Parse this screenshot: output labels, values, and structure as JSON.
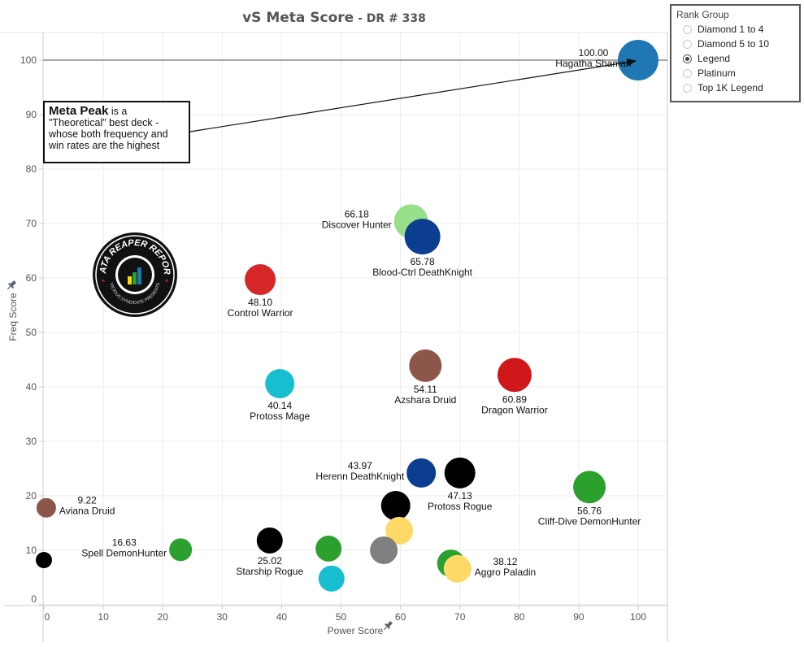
{
  "title": {
    "main": "vS Meta Score",
    "sep": " - ",
    "sub": "DR # 338"
  },
  "legend": {
    "title": "Rank Group",
    "options": [
      {
        "label": "Diamond 1 to 4",
        "selected": false
      },
      {
        "label": "Diamond 5 to 10",
        "selected": false
      },
      {
        "label": "Legend",
        "selected": true
      },
      {
        "label": "Platinum",
        "selected": false
      },
      {
        "label": "Top 1K Legend",
        "selected": false
      }
    ]
  },
  "annotation": {
    "bold": "Meta Peak",
    "rest": " is a \"Theoretical\" best deck - whose both frequency and win rates are the highest"
  },
  "logo": {
    "text_top": "DATA REAPER REPORT",
    "text_bottom": "VICIOUS SYNDICATE PRESENTS"
  },
  "chart_data": {
    "type": "scatter",
    "title": "vS Meta Score - DR # 338",
    "xlabel": "Power Score",
    "ylabel": "Freq Score",
    "xlim": [
      -1,
      105
    ],
    "ylim": [
      -1,
      105
    ],
    "xticks": [
      0,
      10,
      20,
      30,
      40,
      50,
      60,
      70,
      80,
      90,
      100
    ],
    "yticks": [
      0,
      10,
      20,
      30,
      40,
      50,
      60,
      70,
      80,
      90,
      100
    ],
    "grid": true,
    "reference_line_y": 100,
    "points": [
      {
        "name": "Hagatha Shaman",
        "score": "100.00",
        "x": 100,
        "y": 100,
        "size": 25,
        "color": "#1f77b4",
        "label_pos": "left-top"
      },
      {
        "name": "Discover Hunter",
        "score": "66.18",
        "x": 61.8,
        "y": 70.4,
        "size": 21,
        "color": "#98df8a",
        "label_pos": "left"
      },
      {
        "name": "Blood-Ctrl DeathKnight",
        "score": "65.78",
        "x": 63.7,
        "y": 67.6,
        "size": 22,
        "color": "#0b3d91",
        "label_pos": "below"
      },
      {
        "name": "Control Warrior",
        "score": "48.10",
        "x": 36.4,
        "y": 59.7,
        "size": 19,
        "color": "#d62728",
        "label_pos": "below"
      },
      {
        "name": "Azshara Druid",
        "score": "54.11",
        "x": 64.2,
        "y": 43.9,
        "size": 20,
        "color": "#8c564b",
        "label_pos": "below"
      },
      {
        "name": "Dragon Warrior",
        "score": "60.89",
        "x": 79.2,
        "y": 42.2,
        "size": 21,
        "color": "#d0181b",
        "label_pos": "below"
      },
      {
        "name": "Protoss Mage",
        "score": "40.14",
        "x": 39.7,
        "y": 40.6,
        "size": 18,
        "color": "#17becf",
        "label_pos": "below"
      },
      {
        "name": "Herenn DeathKnight",
        "score": "43.97",
        "x": 63.5,
        "y": 24.2,
        "size": 18,
        "color": "#0b3d91",
        "label_pos": "left"
      },
      {
        "name": "Protoss Rogue",
        "score": "47.13",
        "x": 70.0,
        "y": 24.2,
        "size": 19,
        "color": "#000000",
        "label_pos": "below"
      },
      {
        "name": "Cliff-Dive DemonHunter",
        "score": "56.76",
        "x": 91.8,
        "y": 21.6,
        "size": 20,
        "color": "#2ca02c",
        "label_pos": "below"
      },
      {
        "name": "Aviana Druid",
        "score": "9.22",
        "x": 0.4,
        "y": 17.8,
        "size": 12,
        "color": "#8c564b",
        "label_pos": "right"
      },
      {
        "name": "",
        "score": "",
        "x": 59.2,
        "y": 18.2,
        "size": 18,
        "color": "#000000",
        "label_pos": "none"
      },
      {
        "name": "",
        "score": "",
        "x": 59.8,
        "y": 13.6,
        "size": 17,
        "color": "#ffd966",
        "label_pos": "none"
      },
      {
        "name": "",
        "score": "",
        "x": 57.2,
        "y": 10.0,
        "size": 17,
        "color": "#7f7f7f",
        "label_pos": "none"
      },
      {
        "name": "",
        "score": "",
        "x": 47.9,
        "y": 10.3,
        "size": 16,
        "color": "#2ca02c",
        "label_pos": "none"
      },
      {
        "name": "Spell DemonHunter",
        "score": "16.63",
        "x": 23.0,
        "y": 10.1,
        "size": 14,
        "color": "#2ca02c",
        "label_pos": "left"
      },
      {
        "name": "Starship Rogue",
        "score": "25.02",
        "x": 38.0,
        "y": 11.8,
        "size": 16,
        "color": "#000000",
        "label_pos": "below"
      },
      {
        "name": "",
        "score": "",
        "x": 0,
        "y": 8.2,
        "size": 10,
        "color": "#000000",
        "label_pos": "none"
      },
      {
        "name": "",
        "score": "",
        "x": 48.4,
        "y": 4.8,
        "size": 16,
        "color": "#17becf",
        "label_pos": "none"
      },
      {
        "name": "",
        "score": "",
        "x": 68.5,
        "y": 7.6,
        "size": 17,
        "color": "#2ca02c",
        "label_pos": "none"
      },
      {
        "name": "Aggro Paladin",
        "score": "38.12",
        "x": 69.6,
        "y": 6.6,
        "size": 17,
        "color": "#ffd966",
        "label_pos": "right"
      }
    ]
  }
}
